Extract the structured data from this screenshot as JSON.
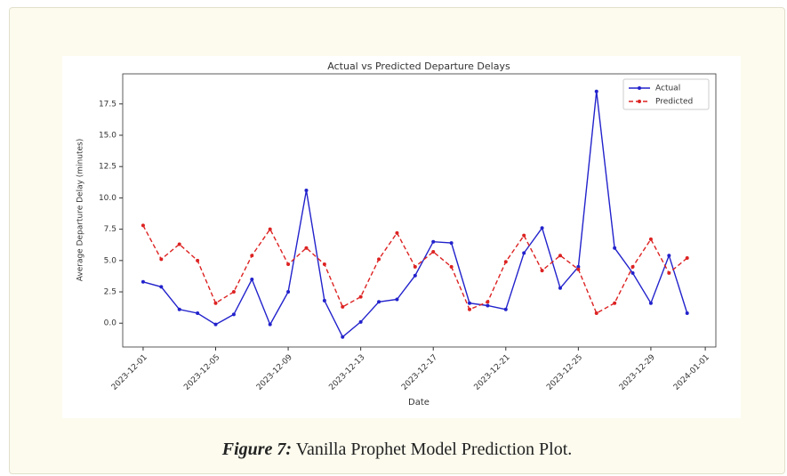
{
  "chart_data": {
    "type": "line",
    "title": "Actual vs Predicted Departure Delays",
    "xlabel": "Date",
    "ylabel": "Average Departure Delay (minutes)",
    "x": [
      "2023-12-01",
      "2023-12-02",
      "2023-12-03",
      "2023-12-04",
      "2023-12-05",
      "2023-12-06",
      "2023-12-07",
      "2023-12-08",
      "2023-12-09",
      "2023-12-10",
      "2023-12-11",
      "2023-12-12",
      "2023-12-13",
      "2023-12-14",
      "2023-12-15",
      "2023-12-16",
      "2023-12-17",
      "2023-12-18",
      "2023-12-19",
      "2023-12-20",
      "2023-12-21",
      "2023-12-22",
      "2023-12-23",
      "2023-12-24",
      "2023-12-25",
      "2023-12-26",
      "2023-12-27",
      "2023-12-28",
      "2023-12-29",
      "2023-12-30",
      "2023-12-31"
    ],
    "series": [
      {
        "name": "Actual",
        "color": "#2222cc",
        "linestyle": "solid",
        "values": [
          3.3,
          2.9,
          1.1,
          0.8,
          -0.1,
          0.7,
          3.5,
          -0.1,
          2.5,
          10.6,
          1.8,
          -1.1,
          0.1,
          1.7,
          1.9,
          3.8,
          6.5,
          6.4,
          1.6,
          1.4,
          1.1,
          5.6,
          7.6,
          2.8,
          4.5,
          18.5,
          6.0,
          4.0,
          1.6,
          5.4,
          0.8
        ]
      },
      {
        "name": "Predicted",
        "color": "#dd2222",
        "linestyle": "dashed",
        "values": [
          7.8,
          5.1,
          6.3,
          5.0,
          1.6,
          2.5,
          5.4,
          7.5,
          4.7,
          6.0,
          4.7,
          1.3,
          2.1,
          5.1,
          7.2,
          4.5,
          5.7,
          4.5,
          1.1,
          1.7,
          4.9,
          7.0,
          4.2,
          5.4,
          4.3,
          0.8,
          1.6,
          4.5,
          6.7,
          4.0,
          5.2
        ]
      }
    ],
    "xlim": [
      "2023-11-29T21:00",
      "2024-01-01T14:00"
    ],
    "xticks": [
      "2023-12-01",
      "2023-12-05",
      "2023-12-09",
      "2023-12-13",
      "2023-12-17",
      "2023-12-21",
      "2023-12-25",
      "2023-12-29",
      "2024-01-01"
    ],
    "ylim": [
      -1.9,
      19.9
    ],
    "yticks": [
      {
        "value": 0,
        "label": "0.0"
      },
      2.5,
      {
        "value": 5,
        "label": "5.0"
      },
      7.5,
      {
        "value": 10,
        "label": "10.0"
      },
      12.5,
      {
        "value": 15,
        "label": "15.0"
      },
      17.5
    ],
    "legend": "upper right",
    "grid": false
  },
  "caption": {
    "label": "Figure 7:",
    "text": "Vanilla Prophet Model Prediction Plot."
  }
}
